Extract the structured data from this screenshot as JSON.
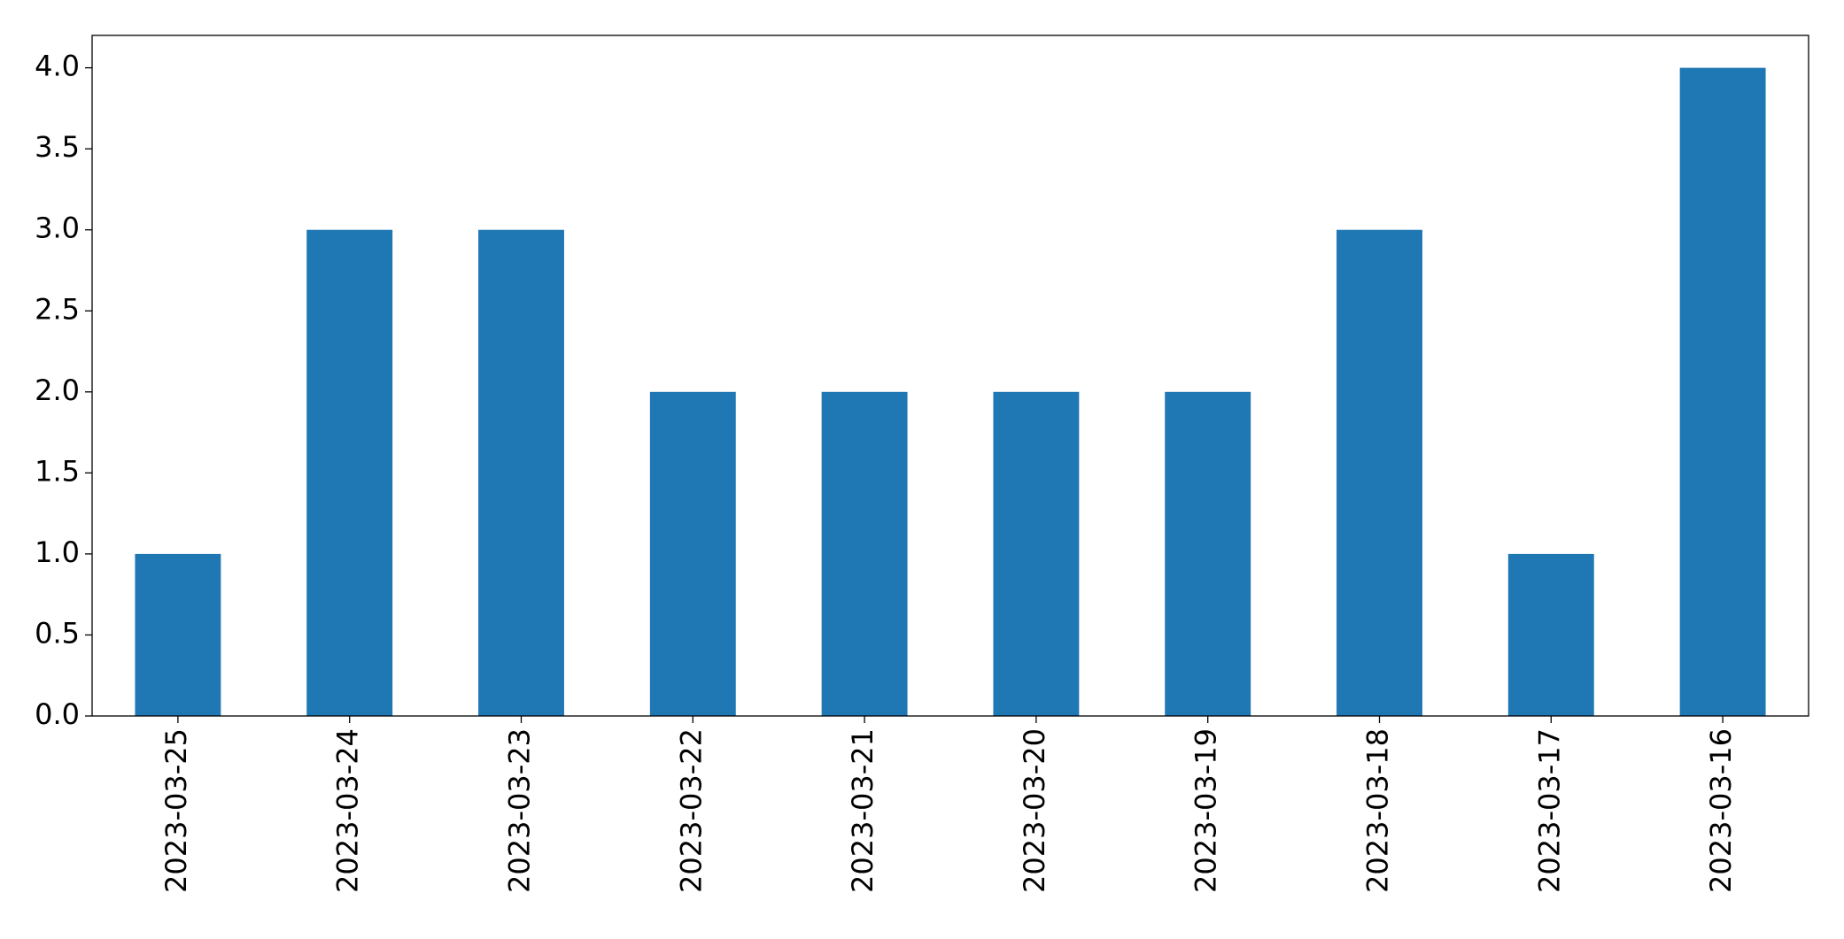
{
  "chart_data": {
    "type": "bar",
    "categories": [
      "2023-03-25",
      "2023-03-24",
      "2023-03-23",
      "2023-03-22",
      "2023-03-21",
      "2023-03-20",
      "2023-03-19",
      "2023-03-18",
      "2023-03-17",
      "2023-03-16"
    ],
    "values": [
      1,
      3,
      3,
      2,
      2,
      2,
      2,
      3,
      1,
      4
    ],
    "color": "#1f77b4",
    "ylim": [
      0,
      4.2
    ],
    "yticks": [
      {
        "value": 0,
        "label": "0.0"
      },
      0.5,
      {
        "value": 1,
        "label": "1.0"
      },
      1.5,
      {
        "value": 2,
        "label": "2.0"
      },
      2.5,
      {
        "value": 3,
        "label": "3.0"
      },
      3.5,
      {
        "value": 4,
        "label": "4.0"
      }
    ],
    "grid": false
  }
}
